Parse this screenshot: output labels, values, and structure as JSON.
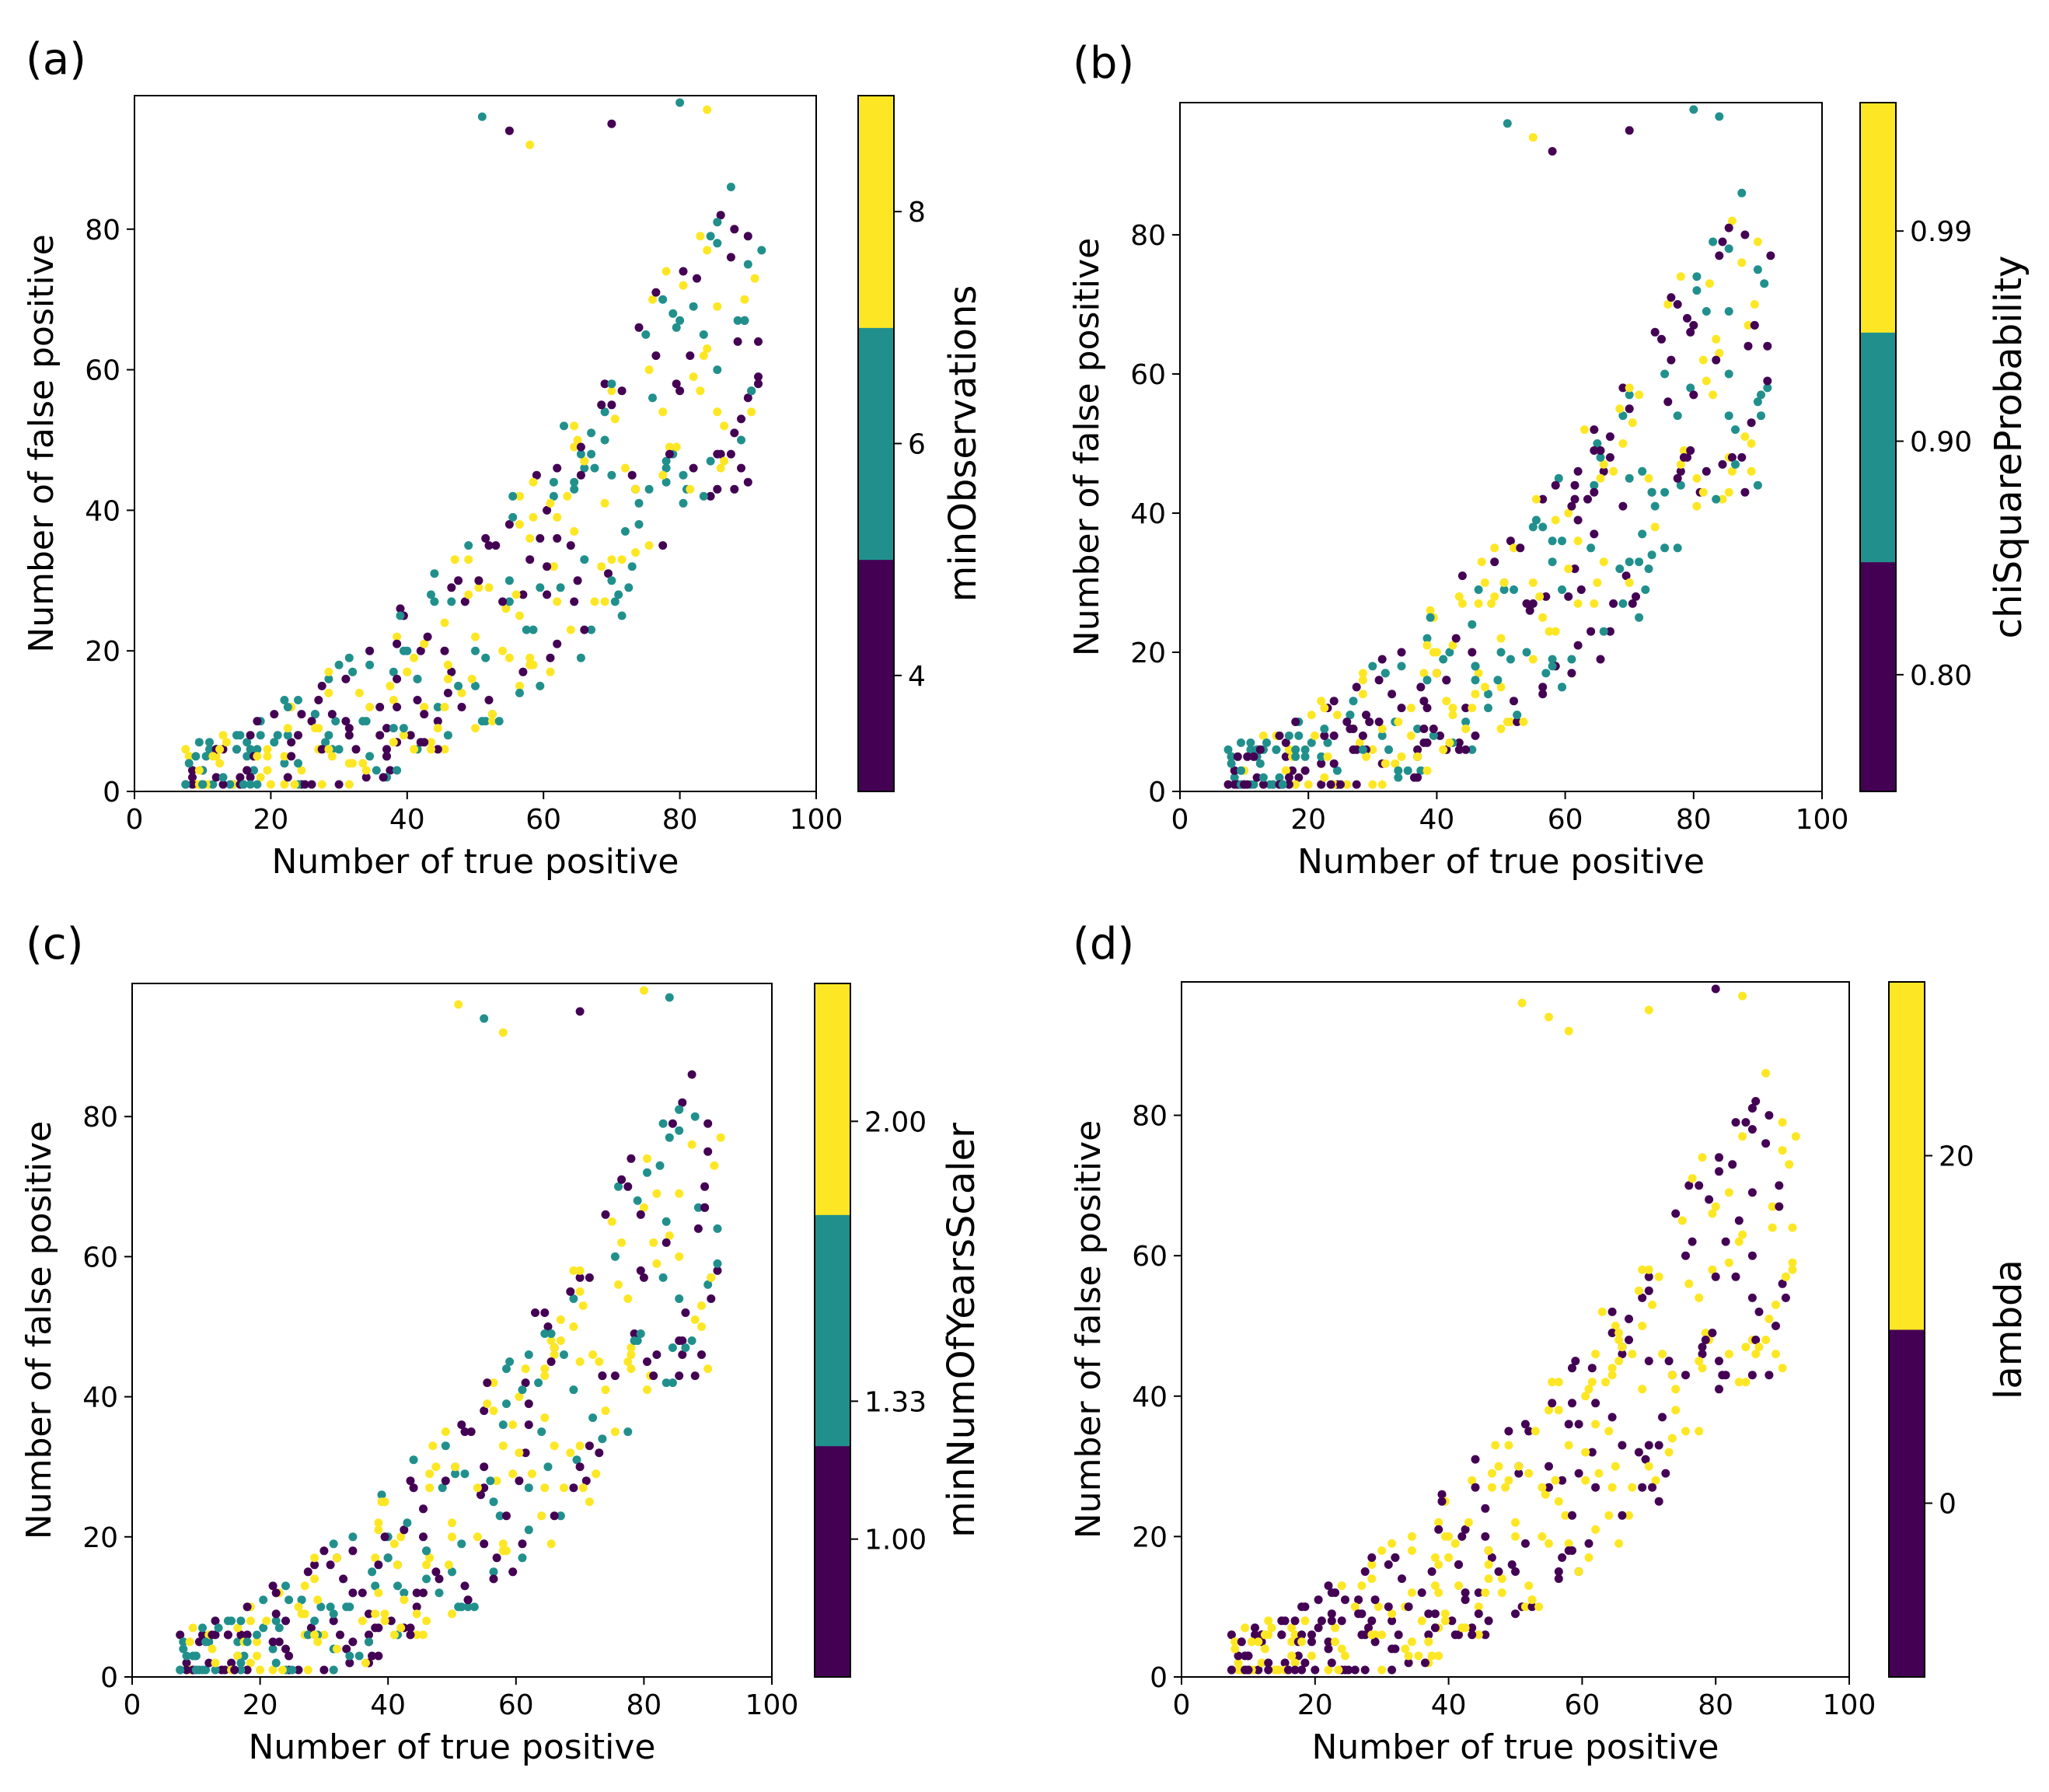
{
  "figure": {
    "panels": [
      "(a)",
      "(b)",
      "(c)",
      "(d)"
    ]
  },
  "chart_data": [
    {
      "type": "scatter",
      "panel": "(a)",
      "xlabel": "Number of true positive",
      "ylabel": "Number of false positive",
      "xlim": [
        0,
        100
      ],
      "ylim": [
        0,
        99
      ],
      "xticks": [
        0,
        20,
        40,
        60,
        80,
        100
      ],
      "yticks": [
        0,
        20,
        40,
        60,
        80
      ],
      "colorbar": {
        "label": "minObservations",
        "range": [
          3,
          9
        ],
        "levels": [
          {
            "value": 4,
            "color": "#440154"
          },
          {
            "value": 6,
            "color": "#21908d"
          },
          {
            "value": 8,
            "color": "#fde725"
          }
        ],
        "ticks": [
          4,
          6,
          8
        ],
        "tick_labels": [
          "4",
          "6",
          "8"
        ]
      },
      "seed": 11
    },
    {
      "type": "scatter",
      "panel": "(b)",
      "xlabel": "Number of true positive",
      "ylabel": "Number of false positive",
      "xlim": [
        0,
        100
      ],
      "ylim": [
        0,
        99
      ],
      "xticks": [
        0,
        20,
        40,
        60,
        80,
        100
      ],
      "yticks": [
        0,
        20,
        40,
        60,
        80
      ],
      "colorbar": {
        "label": "chiSquareProbability",
        "range": [
          0.75,
          1.045
        ],
        "levels": [
          {
            "value": 0.8,
            "color": "#440154"
          },
          {
            "value": 0.9,
            "color": "#21908d"
          },
          {
            "value": 0.99,
            "color": "#fde725"
          }
        ],
        "ticks": [
          0.8,
          0.9,
          0.99
        ],
        "tick_labels": [
          "0.80",
          "0.90",
          "0.99"
        ]
      },
      "seed": 23
    },
    {
      "type": "scatter",
      "panel": "(c)",
      "xlabel": "Number of true positive",
      "ylabel": "Number of false positive",
      "xlim": [
        0,
        100
      ],
      "ylim": [
        0,
        99
      ],
      "xticks": [
        0,
        20,
        40,
        60,
        80,
        100
      ],
      "yticks": [
        0,
        20,
        40,
        60,
        80
      ],
      "colorbar": {
        "label": "minNumOfYearsScaler",
        "range": [
          0.67,
          2.33
        ],
        "levels": [
          {
            "value": 1.0,
            "color": "#440154"
          },
          {
            "value": 1.33,
            "color": "#21908d"
          },
          {
            "value": 2.0,
            "color": "#fde725"
          }
        ],
        "ticks": [
          1.0,
          1.33,
          2.0
        ],
        "tick_labels": [
          "1.00",
          "1.33",
          "2.00"
        ]
      },
      "seed": 37
    },
    {
      "type": "scatter",
      "panel": "(d)",
      "xlabel": "Number of true positive",
      "ylabel": "Number of false positive",
      "xlim": [
        0,
        100
      ],
      "ylim": [
        0,
        99
      ],
      "xticks": [
        0,
        20,
        40,
        60,
        80,
        100
      ],
      "yticks": [
        0,
        20,
        40,
        60,
        80
      ],
      "colorbar": {
        "label": "lambda",
        "range": [
          -10,
          30
        ],
        "levels": [
          {
            "value": 0,
            "color": "#440154"
          },
          {
            "value": 20,
            "color": "#fde725"
          }
        ],
        "ticks": [
          0,
          20
        ],
        "tick_labels": [
          "0",
          "20"
        ]
      },
      "seed": 53
    }
  ]
}
